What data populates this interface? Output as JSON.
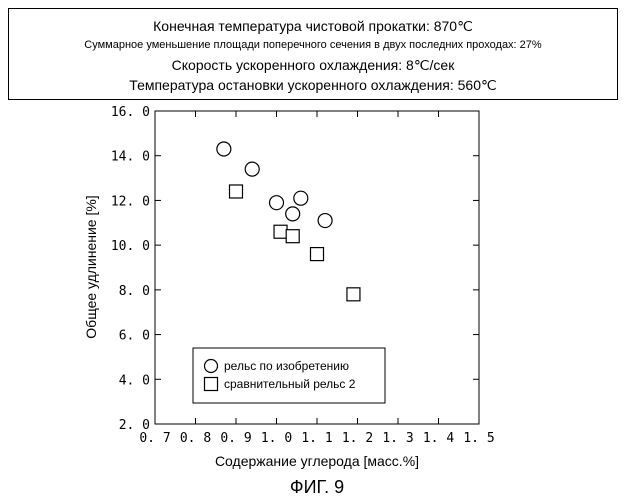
{
  "info": {
    "line1": "Конечная температура чистовой прокатки:    870℃",
    "line2": "Суммарное уменьшение площади поперечного сечения в двух последних проходах: 27%",
    "line3": "Скорость ускоренного охлаждения: 8℃/сек",
    "line4": "Температура остановки ускоренного охлаждения: 560℃"
  },
  "figure_caption": "ФИГ. 9",
  "chart_data": {
    "type": "scatter",
    "title": "",
    "xlabel": "Содержание углерода [масс.%]",
    "ylabel": "Общее удлинение [%]",
    "xlim": [
      0.7,
      1.5
    ],
    "ylim": [
      2.0,
      16.0
    ],
    "x_ticks": [
      0.7,
      0.8,
      0.9,
      1.0,
      1.1,
      1.2,
      1.3,
      1.4,
      1.5
    ],
    "x_tick_labels": [
      "0. 7",
      "0. 8",
      "0. 9",
      "1. 0",
      "1. 1",
      "1. 2",
      "1. 3",
      "1. 4",
      "1. 5"
    ],
    "y_ticks": [
      2.0,
      4.0,
      6.0,
      8.0,
      10.0,
      12.0,
      14.0,
      16.0
    ],
    "y_tick_labels": [
      "2. 0",
      "4. 0",
      "6. 0",
      "8. 0",
      "10. 0",
      "12. 0",
      "14. 0",
      "16. 0"
    ],
    "grid": false,
    "legend_position": "bottom-left",
    "series": [
      {
        "name": "рельс по изобретению",
        "marker": "circle",
        "points": [
          [
            0.87,
            14.3
          ],
          [
            0.94,
            13.4
          ],
          [
            1.0,
            11.9
          ],
          [
            1.04,
            11.4
          ],
          [
            1.06,
            12.1
          ],
          [
            1.12,
            11.1
          ]
        ]
      },
      {
        "name": "сравнительный рельс 2",
        "marker": "square",
        "points": [
          [
            0.9,
            12.4
          ],
          [
            1.01,
            10.6
          ],
          [
            1.04,
            10.4
          ],
          [
            1.1,
            9.6
          ],
          [
            1.19,
            7.8
          ]
        ]
      }
    ]
  }
}
